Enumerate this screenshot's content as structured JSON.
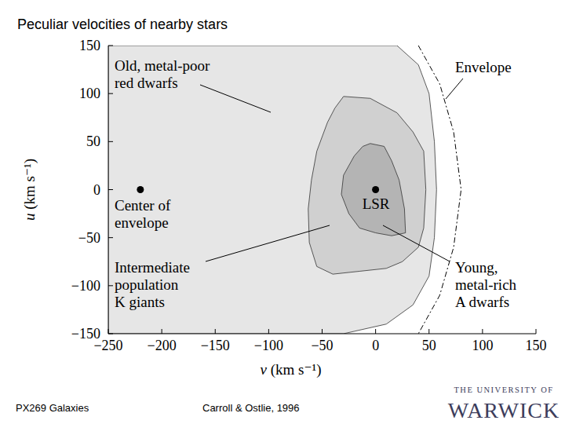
{
  "title": "Peculiar velocities of nearby stars",
  "footer": [
    "PX269 Galaxies",
    "Carroll & Ostlie, 1996"
  ],
  "logo": [
    "THE UNIVERSITY OF",
    "WARWICK"
  ],
  "chart_data": {
    "type": "contour",
    "x_label": "v (km s⁻¹)",
    "y_label": "u (km s⁻¹)",
    "xlim": [
      -250,
      150
    ],
    "ylim": [
      -150,
      150
    ],
    "xticks": [
      {
        "value": -250,
        "label": "−250"
      },
      {
        "value": -200,
        "label": "−200"
      },
      {
        "value": -150,
        "label": "−150"
      },
      {
        "value": -100,
        "label": "−100"
      },
      {
        "value": -50,
        "label": "−50"
      },
      0,
      50,
      100,
      150
    ],
    "yticks": [
      {
        "value": -150,
        "label": "−150"
      },
      {
        "value": -100,
        "label": "−100"
      },
      {
        "value": -50,
        "label": "−50"
      },
      0,
      50,
      100,
      150
    ],
    "grid": false,
    "series": [
      {
        "type": "area",
        "label": [
          "Old, metal-poor",
          "red dwarfs"
        ],
        "color": "#e6e6e6",
        "x": [
          -250,
          20,
          40,
          50,
          55,
          57,
          55,
          50,
          35,
          10,
          -30,
          -250
        ],
        "values": [
          150,
          150,
          130,
          100,
          50,
          0,
          -50,
          -90,
          -120,
          -140,
          -150,
          -150
        ]
      },
      {
        "type": "area",
        "label": [
          "Intermediate",
          "population",
          "K giants"
        ],
        "color": "#d0d0d0",
        "x": [
          -30,
          -5,
          20,
          35,
          45,
          47,
          45,
          40,
          25,
          10,
          -15,
          -40,
          -55,
          -62,
          -63,
          -60,
          -55,
          -45,
          -38
        ],
        "values": [
          97,
          95,
          80,
          60,
          40,
          0,
          -40,
          -60,
          -75,
          -82,
          -85,
          -88,
          -80,
          -55,
          -20,
          10,
          40,
          70,
          85
        ]
      },
      {
        "type": "area",
        "label": [
          "Young,",
          "metal-rich",
          "A dwarfs"
        ],
        "color": "#b4b4b4",
        "x": [
          -5,
          8,
          15,
          22,
          27,
          28,
          15,
          0,
          -15,
          -25,
          -32,
          -30,
          -20,
          -12
        ],
        "values": [
          48,
          45,
          30,
          10,
          -20,
          -45,
          -48,
          -45,
          -40,
          -25,
          -5,
          15,
          35,
          45
        ]
      },
      {
        "type": "line",
        "line_style": "dashed",
        "label": [
          "Envelope"
        ],
        "color": "#000000",
        "x": [
          40,
          60,
          73,
          80,
          73,
          60,
          40
        ],
        "values": [
          150,
          110,
          60,
          0,
          -60,
          -110,
          -150
        ]
      },
      {
        "type": "scatter",
        "marker": "circle",
        "label": [
          "LSR"
        ],
        "color": "#000000",
        "x": [
          0
        ],
        "values": [
          0
        ]
      },
      {
        "type": "scatter",
        "marker": "circle",
        "label": [
          "Center of",
          "envelope"
        ],
        "color": "#000000",
        "x": [
          -220
        ],
        "values": [
          0
        ]
      }
    ]
  }
}
